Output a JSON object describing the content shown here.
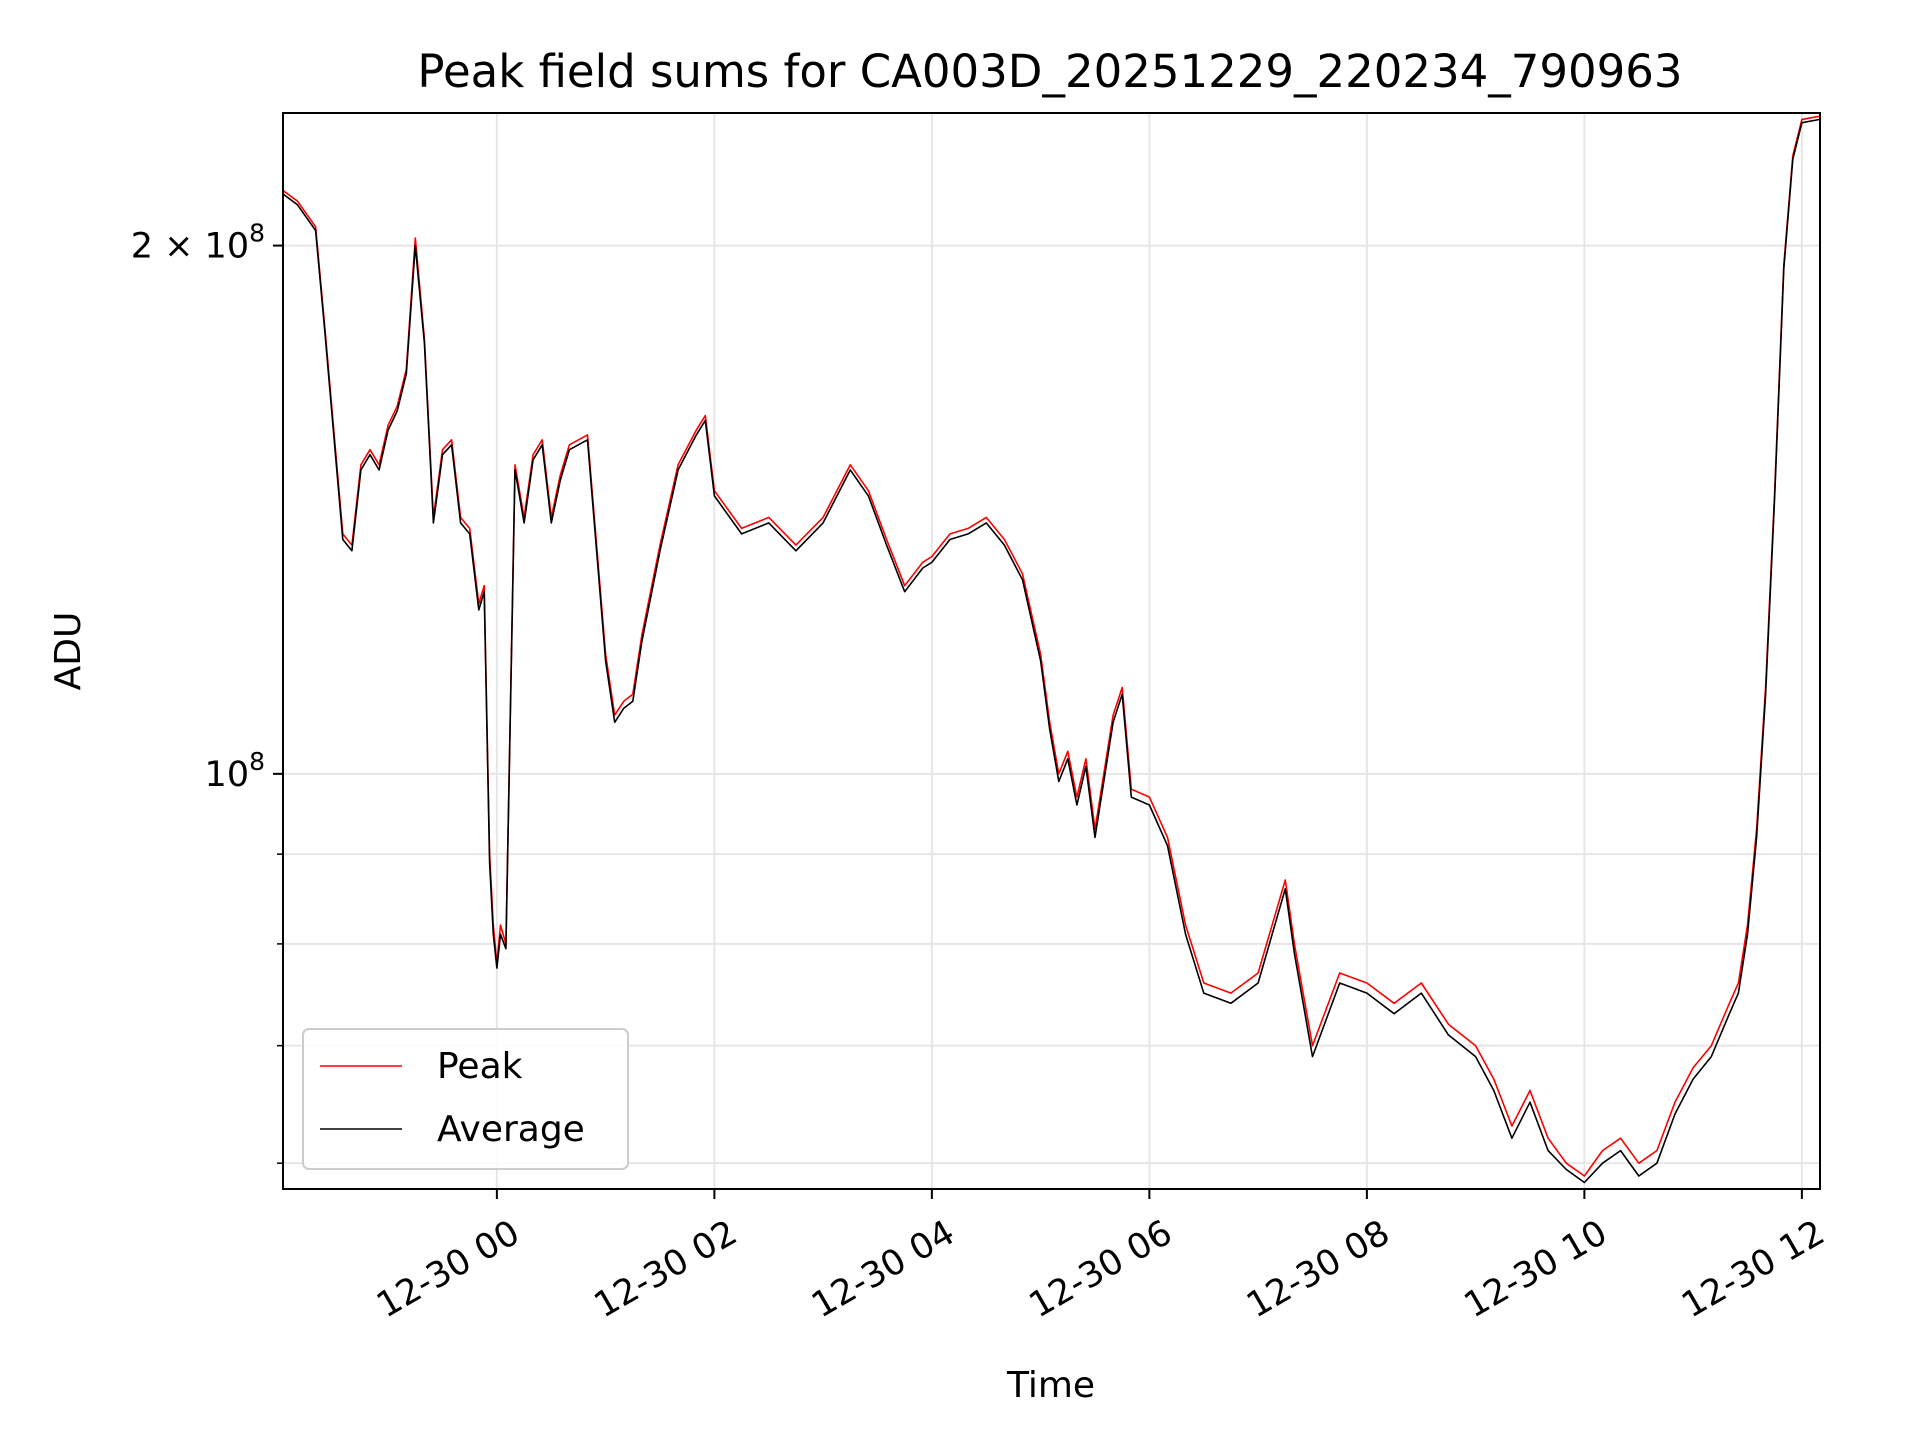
{
  "chart_data": {
    "type": "line",
    "title": "Peak field sums for CA003D_20251229_220234_790963",
    "xlabel": "Time",
    "ylabel": "ADU",
    "x_axis": "datetime",
    "x_range": [
      "2025-12-29T22:02",
      "2025-12-30T12:10"
    ],
    "x_ticks": [
      "12-30 00",
      "12-30 02",
      "12-30 04",
      "12-30 06",
      "12-30 08",
      "12-30 10",
      "12-30 12"
    ],
    "y_scale": "log",
    "ylim": [
      58000000,
      238000000
    ],
    "y_major_ticks": [
      {
        "value": 100000000,
        "label": "10^8"
      },
      {
        "value": 200000000,
        "label": "2 × 10^8"
      }
    ],
    "y_minor_ticks": [
      60000000,
      70000000,
      80000000,
      90000000
    ],
    "grid": true,
    "legend": {
      "placement": "lower left",
      "entries": [
        "Peak",
        "Average"
      ]
    },
    "colors": {
      "Peak": "#ff0000",
      "Average": "#000000"
    },
    "series": [
      {
        "name": "Peak",
        "x": [
          "2025-12-29T22:02",
          "2025-12-29T22:10",
          "2025-12-29T22:20",
          "2025-12-29T22:25",
          "2025-12-29T22:35",
          "2025-12-29T22:40",
          "2025-12-29T22:45",
          "2025-12-29T22:50",
          "2025-12-29T22:55",
          "2025-12-29T23:00",
          "2025-12-29T23:05",
          "2025-12-29T23:10",
          "2025-12-29T23:15",
          "2025-12-29T23:20",
          "2025-12-29T23:25",
          "2025-12-29T23:30",
          "2025-12-29T23:35",
          "2025-12-29T23:40",
          "2025-12-29T23:45",
          "2025-12-29T23:50",
          "2025-12-29T23:53",
          "2025-12-29T23:56",
          "2025-12-29T23:58",
          "2025-12-30T00:00",
          "2025-12-30T00:02",
          "2025-12-30T00:05",
          "2025-12-30T00:10",
          "2025-12-30T00:15",
          "2025-12-30T00:20",
          "2025-12-30T00:25",
          "2025-12-30T00:30",
          "2025-12-30T00:35",
          "2025-12-30T00:40",
          "2025-12-30T00:50",
          "2025-12-30T01:00",
          "2025-12-30T01:05",
          "2025-12-30T01:10",
          "2025-12-30T01:15",
          "2025-12-30T01:20",
          "2025-12-30T01:30",
          "2025-12-30T01:40",
          "2025-12-30T01:50",
          "2025-12-30T01:55",
          "2025-12-30T02:00",
          "2025-12-30T02:15",
          "2025-12-30T02:30",
          "2025-12-30T02:45",
          "2025-12-30T03:00",
          "2025-12-30T03:15",
          "2025-12-30T03:25",
          "2025-12-30T03:35",
          "2025-12-30T03:45",
          "2025-12-30T03:55",
          "2025-12-30T04:00",
          "2025-12-30T04:10",
          "2025-12-30T04:20",
          "2025-12-30T04:30",
          "2025-12-30T04:40",
          "2025-12-30T04:50",
          "2025-12-30T05:00",
          "2025-12-30T05:05",
          "2025-12-30T05:10",
          "2025-12-30T05:15",
          "2025-12-30T05:20",
          "2025-12-30T05:25",
          "2025-12-30T05:30",
          "2025-12-30T05:40",
          "2025-12-30T05:45",
          "2025-12-30T05:50",
          "2025-12-30T06:00",
          "2025-12-30T06:10",
          "2025-12-30T06:20",
          "2025-12-30T06:30",
          "2025-12-30T06:45",
          "2025-12-30T07:00",
          "2025-12-30T07:15",
          "2025-12-30T07:20",
          "2025-12-30T07:30",
          "2025-12-30T07:45",
          "2025-12-30T08:00",
          "2025-12-30T08:15",
          "2025-12-30T08:30",
          "2025-12-30T08:45",
          "2025-12-30T09:00",
          "2025-12-30T09:10",
          "2025-12-30T09:20",
          "2025-12-30T09:30",
          "2025-12-30T09:40",
          "2025-12-30T09:50",
          "2025-12-30T10:00",
          "2025-12-30T10:10",
          "2025-12-30T10:20",
          "2025-12-30T10:30",
          "2025-12-30T10:40",
          "2025-12-30T10:50",
          "2025-12-30T11:00",
          "2025-12-30T11:10",
          "2025-12-30T11:20",
          "2025-12-30T11:25",
          "2025-12-30T11:30",
          "2025-12-30T11:35",
          "2025-12-30T11:40",
          "2025-12-30T11:45",
          "2025-12-30T11:50",
          "2025-12-30T11:55",
          "2025-12-30T12:00",
          "2025-12-30T12:10"
        ],
        "y": [
          215000000,
          212000000,
          205000000,
          180000000,
          137000000,
          135000000,
          150000000,
          153000000,
          150000000,
          158000000,
          162000000,
          170000000,
          202000000,
          177000000,
          140000000,
          153000000,
          155000000,
          140000000,
          138000000,
          125000000,
          128000000,
          90000000,
          82000000,
          78000000,
          82000000,
          80000000,
          150000000,
          140000000,
          152000000,
          155000000,
          140000000,
          148000000,
          154000000,
          156000000,
          117000000,
          108000000,
          110000000,
          111000000,
          120000000,
          135000000,
          150000000,
          157000000,
          160000000,
          145000000,
          138000000,
          140000000,
          135000000,
          140000000,
          150000000,
          145000000,
          136000000,
          128000000,
          132000000,
          133000000,
          137000000,
          138000000,
          140000000,
          136000000,
          130000000,
          117000000,
          107000000,
          100000000,
          103000000,
          97000000,
          102000000,
          93000000,
          108000000,
          112000000,
          98000000,
          97000000,
          92000000,
          82000000,
          76000000,
          75000000,
          77000000,
          87000000,
          80000000,
          70000000,
          77000000,
          76000000,
          74000000,
          76000000,
          72000000,
          70000000,
          67000000,
          63000000,
          66000000,
          62000000,
          60000000,
          59000000,
          61000000,
          62000000,
          60000000,
          61000000,
          65000000,
          68000000,
          70000000,
          74000000,
          76000000,
          82000000,
          93000000,
          112000000,
          145000000,
          195000000,
          225000000,
          236000000,
          237000000
        ]
      },
      {
        "name": "Average",
        "x": [
          "2025-12-29T22:02",
          "2025-12-29T22:10",
          "2025-12-29T22:20",
          "2025-12-29T22:25",
          "2025-12-29T22:35",
          "2025-12-29T22:40",
          "2025-12-29T22:45",
          "2025-12-29T22:50",
          "2025-12-29T22:55",
          "2025-12-29T23:00",
          "2025-12-29T23:05",
          "2025-12-29T23:10",
          "2025-12-29T23:15",
          "2025-12-29T23:20",
          "2025-12-29T23:25",
          "2025-12-29T23:30",
          "2025-12-29T23:35",
          "2025-12-29T23:40",
          "2025-12-29T23:45",
          "2025-12-29T23:50",
          "2025-12-29T23:53",
          "2025-12-29T23:56",
          "2025-12-29T23:58",
          "2025-12-30T00:00",
          "2025-12-30T00:02",
          "2025-12-30T00:05",
          "2025-12-30T00:10",
          "2025-12-30T00:15",
          "2025-12-30T00:20",
          "2025-12-30T00:25",
          "2025-12-30T00:30",
          "2025-12-30T00:35",
          "2025-12-30T00:40",
          "2025-12-30T00:50",
          "2025-12-30T01:00",
          "2025-12-30T01:05",
          "2025-12-30T01:10",
          "2025-12-30T01:15",
          "2025-12-30T01:20",
          "2025-12-30T01:30",
          "2025-12-30T01:40",
          "2025-12-30T01:50",
          "2025-12-30T01:55",
          "2025-12-30T02:00",
          "2025-12-30T02:15",
          "2025-12-30T02:30",
          "2025-12-30T02:45",
          "2025-12-30T03:00",
          "2025-12-30T03:15",
          "2025-12-30T03:25",
          "2025-12-30T03:35",
          "2025-12-30T03:45",
          "2025-12-30T03:55",
          "2025-12-30T04:00",
          "2025-12-30T04:10",
          "2025-12-30T04:20",
          "2025-12-30T04:30",
          "2025-12-30T04:40",
          "2025-12-30T04:50",
          "2025-12-30T05:00",
          "2025-12-30T05:05",
          "2025-12-30T05:10",
          "2025-12-30T05:15",
          "2025-12-30T05:20",
          "2025-12-30T05:25",
          "2025-12-30T05:30",
          "2025-12-30T05:40",
          "2025-12-30T05:45",
          "2025-12-30T05:50",
          "2025-12-30T06:00",
          "2025-12-30T06:10",
          "2025-12-30T06:20",
          "2025-12-30T06:30",
          "2025-12-30T06:45",
          "2025-12-30T07:00",
          "2025-12-30T07:15",
          "2025-12-30T07:20",
          "2025-12-30T07:30",
          "2025-12-30T07:45",
          "2025-12-30T08:00",
          "2025-12-30T08:15",
          "2025-12-30T08:30",
          "2025-12-30T08:45",
          "2025-12-30T09:00",
          "2025-12-30T09:10",
          "2025-12-30T09:20",
          "2025-12-30T09:30",
          "2025-12-30T09:40",
          "2025-12-30T09:50",
          "2025-12-30T10:00",
          "2025-12-30T10:10",
          "2025-12-30T10:20",
          "2025-12-30T10:30",
          "2025-12-30T10:40",
          "2025-12-30T10:50",
          "2025-12-30T11:00",
          "2025-12-30T11:10",
          "2025-12-30T11:20",
          "2025-12-30T11:25",
          "2025-12-30T11:30",
          "2025-12-30T11:35",
          "2025-12-30T11:40",
          "2025-12-30T11:45",
          "2025-12-30T11:50",
          "2025-12-30T11:55",
          "2025-12-30T12:00",
          "2025-12-30T12:10"
        ],
        "y": [
          214000000,
          211000000,
          204000000,
          179000000,
          136000000,
          134000000,
          149000000,
          152000000,
          149000000,
          157000000,
          161000000,
          169000000,
          200000000,
          176000000,
          139000000,
          152000000,
          154000000,
          139000000,
          137000000,
          124000000,
          127000000,
          89000000,
          81000000,
          77500000,
          81000000,
          79500000,
          149000000,
          139000000,
          151000000,
          154000000,
          139000000,
          147000000,
          153000000,
          155000000,
          116000000,
          107000000,
          109000000,
          110000000,
          119000000,
          134000000,
          149000000,
          156000000,
          159000000,
          144000000,
          137000000,
          139000000,
          134000000,
          139000000,
          149000000,
          144000000,
          135000000,
          127000000,
          131000000,
          132000000,
          136000000,
          137000000,
          139000000,
          135000000,
          129000000,
          116000000,
          106000000,
          99000000,
          102000000,
          96000000,
          101000000,
          92000000,
          107000000,
          111000000,
          97000000,
          96000000,
          91000000,
          81000000,
          75000000,
          74000000,
          76000000,
          86000000,
          79000000,
          69000000,
          76000000,
          75000000,
          73000000,
          75000000,
          71000000,
          69000000,
          66000000,
          62000000,
          65000000,
          61000000,
          59500000,
          58500000,
          60000000,
          61000000,
          59000000,
          60000000,
          64000000,
          67000000,
          69000000,
          73000000,
          75000000,
          81000000,
          92000000,
          111000000,
          144000000,
          194000000,
          224000000,
          235000000,
          236000000
        ]
      }
    ]
  }
}
